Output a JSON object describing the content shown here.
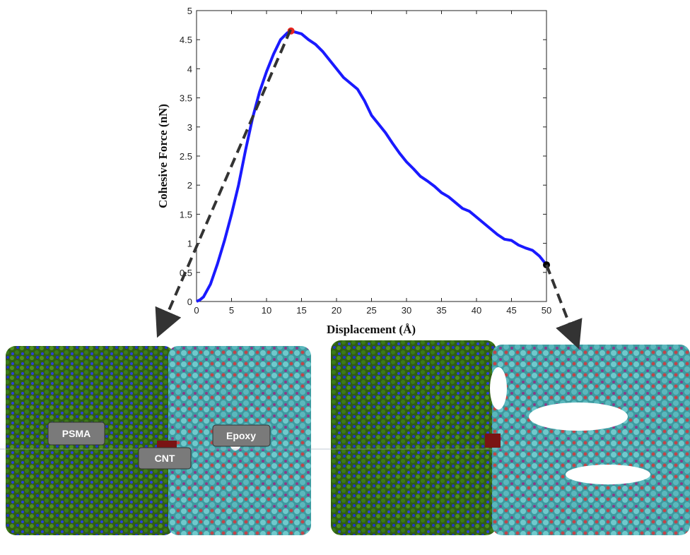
{
  "chart_data": {
    "type": "line",
    "xlabel": "Displacement (Å)",
    "ylabel": "Cohesive Force (nN)",
    "x": [
      0,
      0.5,
      1,
      2,
      3,
      4,
      5,
      6,
      7,
      8,
      9,
      10,
      11,
      12,
      13,
      13.5,
      15,
      16,
      17,
      18,
      19,
      20,
      21,
      22,
      23,
      24,
      25,
      26,
      27,
      28,
      29,
      30,
      31,
      32,
      33,
      34,
      35,
      36,
      37,
      38,
      39,
      40,
      41,
      42,
      43,
      44,
      45,
      46,
      47,
      48,
      49,
      50
    ],
    "values": [
      0,
      0.03,
      0.08,
      0.3,
      0.65,
      1.05,
      1.5,
      2.0,
      2.6,
      3.15,
      3.6,
      3.95,
      4.25,
      4.5,
      4.62,
      4.65,
      4.6,
      4.5,
      4.42,
      4.3,
      4.15,
      4.0,
      3.85,
      3.75,
      3.65,
      3.45,
      3.2,
      3.05,
      2.9,
      2.72,
      2.55,
      2.4,
      2.28,
      2.15,
      2.07,
      1.98,
      1.87,
      1.8,
      1.7,
      1.6,
      1.55,
      1.45,
      1.35,
      1.25,
      1.15,
      1.07,
      1.05,
      0.97,
      0.92,
      0.88,
      0.78,
      0.63
    ],
    "color": "#1a1aff",
    "points": [
      {
        "x": 13.5,
        "y": 4.65,
        "color": "#e8231e"
      },
      {
        "x": 50,
        "y": 0.63,
        "color": "#000000"
      }
    ],
    "xlim": [
      0,
      50
    ],
    "xticks": [
      0,
      5,
      10,
      15,
      20,
      25,
      30,
      35,
      40,
      45,
      50
    ],
    "ylim": [
      0,
      5
    ],
    "yticks": [
      0,
      0.5,
      1,
      1.5,
      2,
      2.5,
      3,
      3.5,
      4,
      4.5,
      5
    ],
    "annotations": [
      "PSMA",
      "Epoxy",
      "CNT"
    ]
  }
}
